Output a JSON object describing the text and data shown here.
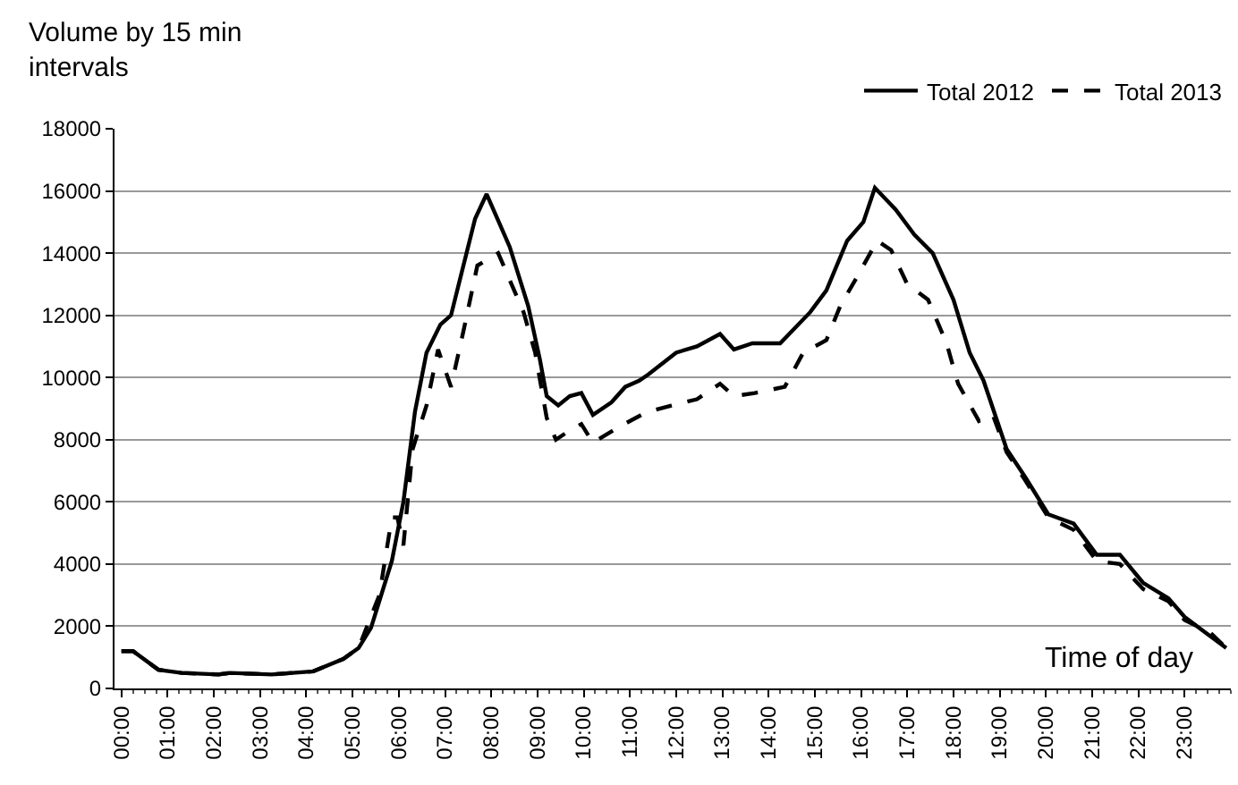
{
  "chart_data": {
    "type": "line",
    "ylabel": "Volume by 15 min intervals",
    "xlabel": "Time of day",
    "xlim": [
      -0.15,
      24
    ],
    "xticks": [
      {
        "value": 0,
        "label": "00:00"
      },
      {
        "value": 1,
        "label": "01:00"
      },
      {
        "value": 2,
        "label": "02:00"
      },
      {
        "value": 3,
        "label": "03:00"
      },
      {
        "value": 4,
        "label": "04:00"
      },
      {
        "value": 5,
        "label": "05:00"
      },
      {
        "value": 6,
        "label": "06:00"
      },
      {
        "value": 7,
        "label": "07:00"
      },
      {
        "value": 8,
        "label": "08:00"
      },
      {
        "value": 9,
        "label": "09:00"
      },
      {
        "value": 10,
        "label": "10:00"
      },
      {
        "value": 11,
        "label": "11:00"
      },
      {
        "value": 12,
        "label": "12:00"
      },
      {
        "value": 13,
        "label": "13:00"
      },
      {
        "value": 14,
        "label": "14:00"
      },
      {
        "value": 15,
        "label": "15:00"
      },
      {
        "value": 16,
        "label": "16:00"
      },
      {
        "value": 17,
        "label": "17:00"
      },
      {
        "value": 18,
        "label": "18:00"
      },
      {
        "value": 19,
        "label": "19:00"
      },
      {
        "value": 20,
        "label": "20:00"
      },
      {
        "value": 21,
        "label": "21:00"
      },
      {
        "value": 22,
        "label": "22:00"
      },
      {
        "value": 23,
        "label": "23:00"
      }
    ],
    "ylim": [
      0,
      18000
    ],
    "yticks": [
      0,
      2000,
      4000,
      6000,
      8000,
      10000,
      12000,
      14000,
      16000,
      18000
    ],
    "grid": "y",
    "legend": "top right",
    "marker": "none",
    "series": [
      {
        "name": "Total 2012",
        "color": "#000000",
        "line_style": "solid",
        "x": [
          0,
          0.25,
          0.8,
          1.3,
          2.1,
          2.35,
          3.25,
          4.15,
          4.8,
          5.13,
          5.4,
          5.85,
          6.1,
          6.35,
          6.6,
          6.9,
          7.13,
          7.65,
          7.9,
          8.4,
          8.8,
          9.05,
          9.2,
          9.45,
          9.7,
          9.95,
          10.2,
          10.6,
          10.9,
          11.2,
          11.4,
          12,
          12.45,
          12.95,
          13.25,
          13.65,
          14.25,
          14.9,
          15.25,
          15.7,
          16.05,
          16.3,
          16.75,
          17.15,
          17.55,
          18,
          18.35,
          18.65,
          19.15,
          19.55,
          20.05,
          20.6,
          21.1,
          21.6,
          22.1,
          22.65,
          23,
          23.45,
          23.9
        ],
        "values": [
          1200,
          1200,
          600,
          500,
          450,
          500,
          450,
          550,
          950,
          1300,
          1950,
          4100,
          6000,
          8900,
          10800,
          11700,
          12000,
          15100,
          15900,
          14200,
          12300,
          10600,
          9400,
          9100,
          9400,
          9500,
          8800,
          9200,
          9700,
          9900,
          10100,
          10800,
          11000,
          11400,
          10900,
          11100,
          11100,
          12100,
          12800,
          14400,
          15000,
          16100,
          15400,
          14600,
          14000,
          12500,
          10800,
          9900,
          7700,
          6800,
          5600,
          5300,
          4300,
          4300,
          3400,
          2900,
          2300,
          1800,
          1300
        ]
      },
      {
        "name": "Total 2013",
        "color": "#000000",
        "line_style": "dashed",
        "x": [
          0,
          0.25,
          0.8,
          1.3,
          2.1,
          2.35,
          3.25,
          4.15,
          4.8,
          5.13,
          5.58,
          5.85,
          5.97,
          6.1,
          6.3,
          6.6,
          6.85,
          7.13,
          7.4,
          7.7,
          8.15,
          8.7,
          8.95,
          9.2,
          9.4,
          9.7,
          9.95,
          10.2,
          10.75,
          11.25,
          11.4,
          11.9,
          12.45,
          12.95,
          13.25,
          13.7,
          14.35,
          14.75,
          15.25,
          15.55,
          15.9,
          16.35,
          16.65,
          17,
          17.45,
          17.85,
          18.1,
          18.55,
          18.85,
          19.15,
          19.55,
          20.05,
          20.6,
          21.1,
          21.6,
          22.1,
          22.65,
          23,
          23.55,
          23.9
        ],
        "values": [
          1200,
          1200,
          600,
          500,
          450,
          500,
          450,
          550,
          950,
          1300,
          3000,
          5500,
          5500,
          4600,
          7700,
          9100,
          10900,
          9700,
          11500,
          13600,
          14000,
          12100,
          10800,
          8700,
          8000,
          8300,
          8500,
          7900,
          8400,
          8800,
          8900,
          9100,
          9300,
          9800,
          9400,
          9500,
          9700,
          10800,
          11200,
          12300,
          13200,
          14400,
          14100,
          13000,
          12500,
          11100,
          9800,
          8600,
          8800,
          7600,
          6700,
          5500,
          5100,
          4100,
          4000,
          3200,
          2800,
          2200,
          1800,
          1300
        ]
      }
    ]
  }
}
